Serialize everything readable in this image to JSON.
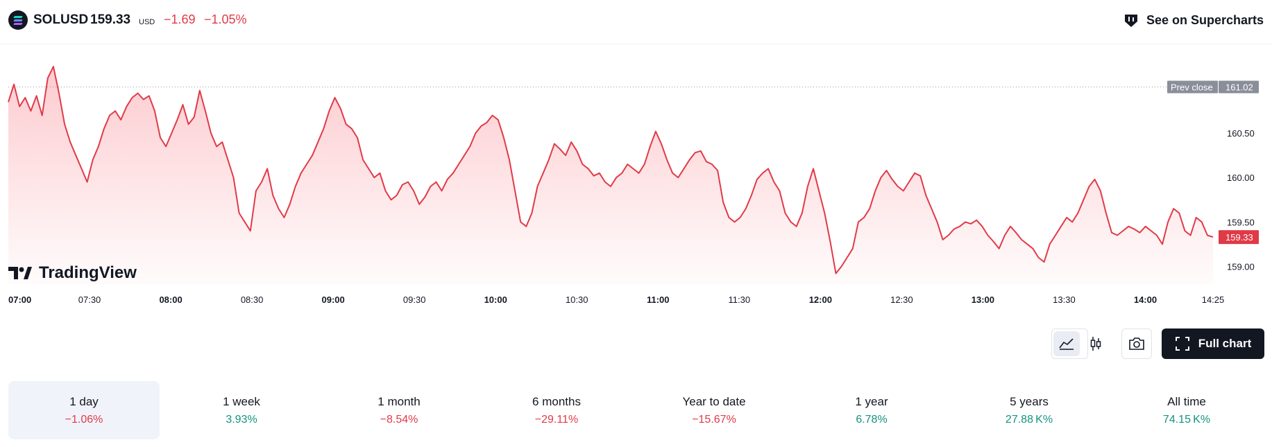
{
  "header": {
    "symbol": "SOLUSD",
    "price": "159.33",
    "currency": "USD",
    "change": "−1.69",
    "change_percent": "−1.05%",
    "supercharts_label": "See on Supercharts"
  },
  "colors": {
    "line": "#e03a47",
    "negative": "#e03a47",
    "positive": "#12937f",
    "prev_close_tag": "#8a8e99"
  },
  "watermark": "TradingView",
  "toolbar": {
    "full_chart_label": "Full chart",
    "icons": [
      "area-chart-icon",
      "candlestick-icon",
      "camera-icon",
      "fullscreen-icon"
    ]
  },
  "chart_data": {
    "type": "area",
    "y_ticks": [
      "160.50",
      "160.00",
      "159.50",
      "159.00"
    ],
    "y_tick_values": [
      160.5,
      160.0,
      159.5,
      159.0
    ],
    "ylim": [
      158.8,
      161.5
    ],
    "x_ticks": [
      {
        "label": "07:00",
        "bold": true,
        "t": 0
      },
      {
        "label": "07:30",
        "bold": false,
        "t": 30
      },
      {
        "label": "08:00",
        "bold": true,
        "t": 60
      },
      {
        "label": "08:30",
        "bold": false,
        "t": 90
      },
      {
        "label": "09:00",
        "bold": true,
        "t": 120
      },
      {
        "label": "09:30",
        "bold": false,
        "t": 150
      },
      {
        "label": "10:00",
        "bold": true,
        "t": 180
      },
      {
        "label": "10:30",
        "bold": false,
        "t": 210
      },
      {
        "label": "11:00",
        "bold": true,
        "t": 240
      },
      {
        "label": "11:30",
        "bold": false,
        "t": 270
      },
      {
        "label": "12:00",
        "bold": true,
        "t": 300
      },
      {
        "label": "12:30",
        "bold": false,
        "t": 330
      },
      {
        "label": "13:00",
        "bold": true,
        "t": 360
      },
      {
        "label": "13:30",
        "bold": false,
        "t": 390
      },
      {
        "label": "14:00",
        "bold": true,
        "t": 420
      },
      {
        "label": "14:25",
        "bold": false,
        "t": 445
      }
    ],
    "prev_close": {
      "label": "Prev close",
      "value_label": "161.02",
      "value": 161.02
    },
    "last": {
      "value_label": "159.33",
      "value": 159.33
    },
    "series": [
      {
        "values": [
          160.85,
          161.05,
          160.8,
          160.9,
          160.75,
          160.92,
          160.7,
          161.12,
          161.25,
          160.95,
          160.6,
          160.4,
          160.25,
          160.1,
          159.95,
          160.2,
          160.35,
          160.55,
          160.7,
          160.75,
          160.65,
          160.8,
          160.9,
          160.95,
          160.88,
          160.92,
          160.75,
          160.45,
          160.35,
          160.5,
          160.65,
          160.82,
          160.6,
          160.68,
          160.98,
          160.75,
          160.5,
          160.35,
          160.4,
          160.2,
          160.0,
          159.6,
          159.5,
          159.4,
          159.85,
          159.95,
          160.1,
          159.8,
          159.65,
          159.55,
          159.7,
          159.9,
          160.05,
          160.15,
          160.25,
          160.4,
          160.55,
          160.75,
          160.9,
          160.78,
          160.6,
          160.55,
          160.45,
          160.2,
          160.1,
          160.0,
          160.05,
          159.85,
          159.75,
          159.8,
          159.92,
          159.95,
          159.85,
          159.7,
          159.78,
          159.9,
          159.95,
          159.85,
          159.98,
          160.05,
          160.15,
          160.25,
          160.35,
          160.5,
          160.58,
          160.62,
          160.7,
          160.65,
          160.45,
          160.2,
          159.85,
          159.5,
          159.45,
          159.6,
          159.9,
          160.05,
          160.2,
          160.38,
          160.32,
          160.25,
          160.4,
          160.3,
          160.15,
          160.1,
          160.02,
          160.05,
          159.95,
          159.9,
          160.0,
          160.05,
          160.15,
          160.1,
          160.05,
          160.15,
          160.35,
          160.52,
          160.38,
          160.2,
          160.05,
          160.0,
          160.1,
          160.2,
          160.28,
          160.3,
          160.18,
          160.15,
          160.08,
          159.72,
          159.55,
          159.5,
          159.55,
          159.65,
          159.8,
          159.98,
          160.05,
          160.1,
          159.95,
          159.85,
          159.6,
          159.5,
          159.45,
          159.6,
          159.9,
          160.1,
          159.85,
          159.6,
          159.28,
          158.92,
          159.0,
          159.1,
          159.2,
          159.5,
          159.55,
          159.65,
          159.85,
          160.0,
          160.08,
          159.98,
          159.9,
          159.85,
          159.95,
          160.05,
          160.02,
          159.8,
          159.65,
          159.5,
          159.3,
          159.35,
          159.42,
          159.45,
          159.5,
          159.48,
          159.52,
          159.45,
          159.35,
          159.28,
          159.2,
          159.35,
          159.45,
          159.38,
          159.3,
          159.25,
          159.2,
          159.1,
          159.05,
          159.25,
          159.35,
          159.45,
          159.55,
          159.5,
          159.6,
          159.75,
          159.9,
          159.98,
          159.85,
          159.6,
          159.38,
          159.35,
          159.4,
          159.45,
          159.42,
          159.38,
          159.45,
          159.4,
          159.35,
          159.25,
          159.5,
          159.65,
          159.6,
          159.4,
          159.35,
          159.55,
          159.5,
          159.35,
          159.33
        ]
      }
    ]
  },
  "periods": [
    {
      "label": "1 day",
      "value": "−1.06%",
      "sign": "neg",
      "active": true
    },
    {
      "label": "1 week",
      "value": "3.93%",
      "sign": "pos",
      "active": false
    },
    {
      "label": "1 month",
      "value": "−8.54%",
      "sign": "neg",
      "active": false
    },
    {
      "label": "6 months",
      "value": "−29.11%",
      "sign": "neg",
      "active": false
    },
    {
      "label": "Year to date",
      "value": "−15.67%",
      "sign": "neg",
      "active": false
    },
    {
      "label": "1 year",
      "value": "6.78%",
      "sign": "pos",
      "active": false
    },
    {
      "label": "5 years",
      "value": "27.88 K%",
      "sign": "pos",
      "active": false
    },
    {
      "label": "All time",
      "value": "74.15 K%",
      "sign": "pos",
      "active": false
    }
  ]
}
